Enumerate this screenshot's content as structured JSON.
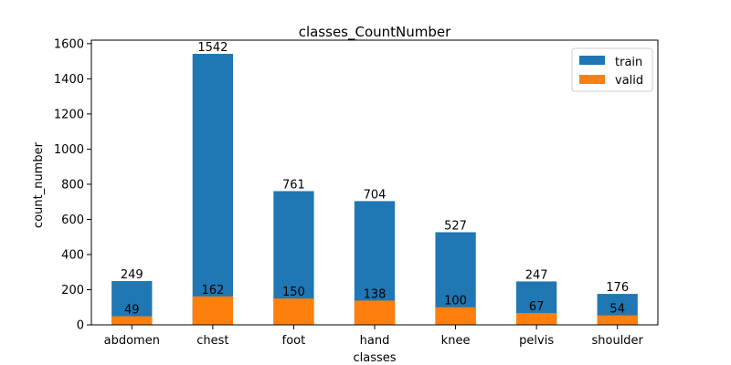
{
  "chart_data": {
    "type": "bar",
    "title": "classes_CountNumber",
    "xlabel": "classes",
    "ylabel": "count_number",
    "categories": [
      "abdomen",
      "chest",
      "foot",
      "hand",
      "knee",
      "pelvis",
      "shoulder"
    ],
    "series": [
      {
        "name": "train",
        "color": "#1f77b4",
        "values": [
          249,
          1542,
          761,
          704,
          527,
          247,
          176
        ]
      },
      {
        "name": "valid",
        "color": "#ff7f0e",
        "values": [
          49,
          162,
          150,
          138,
          100,
          67,
          54
        ]
      }
    ],
    "ylim": [
      0,
      1620
    ],
    "yticks": [
      0,
      200,
      400,
      600,
      800,
      1000,
      1200,
      1400,
      1600
    ],
    "grid": false,
    "legend_position": "top-right",
    "overlaid": true
  }
}
